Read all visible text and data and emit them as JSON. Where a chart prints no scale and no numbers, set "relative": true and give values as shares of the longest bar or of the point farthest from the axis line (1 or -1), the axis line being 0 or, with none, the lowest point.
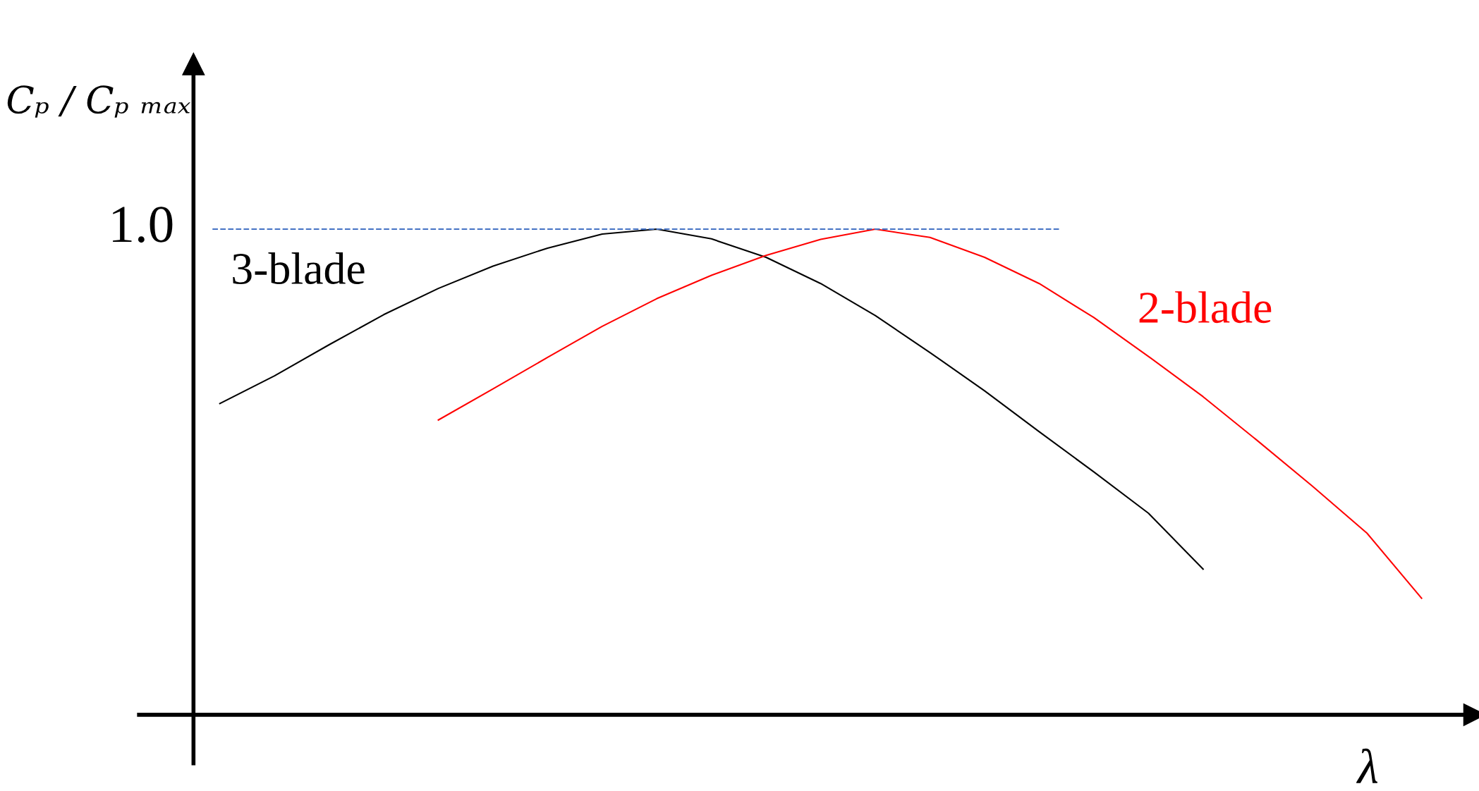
{
  "chart_data": {
    "type": "line",
    "relative": true,
    "ylabel": "Cₚ / Cₚ ₘₐₓ",
    "xlabel": "λ",
    "categories": [
      null,
      null,
      null,
      null,
      null,
      null,
      null,
      null,
      null,
      null,
      null,
      null,
      null,
      null,
      null,
      null,
      null,
      null,
      null,
      null,
      null,
      null,
      null
    ],
    "series": [
      {
        "name": "3-blade",
        "color": "#000000",
        "values": [
          0.641,
          0.698,
          0.762,
          0.824,
          0.878,
          0.924,
          0.961,
          0.99,
          1.0,
          0.98,
          0.942,
          0.888,
          0.822,
          0.746,
          0.667,
          0.583,
          0.5,
          0.415,
          0.3,
          null,
          null,
          null,
          null
        ]
      },
      {
        "name": "2-blade",
        "color": "#ff0000",
        "values": [
          null,
          null,
          null,
          null,
          0.607,
          0.671,
          0.736,
          0.8,
          0.857,
          0.905,
          0.946,
          0.979,
          1.0,
          0.983,
          0.942,
          0.888,
          0.818,
          0.738,
          0.655,
          0.564,
          0.471,
          0.374,
          0.24
        ]
      }
    ],
    "ref_lines": [
      {
        "axis": "y",
        "value": 1.0,
        "label": "1.0",
        "color": "#4472c4",
        "line_style": "dashed"
      }
    ],
    "grid": false,
    "legend": false,
    "marker": "none",
    "line_style": "solid"
  }
}
